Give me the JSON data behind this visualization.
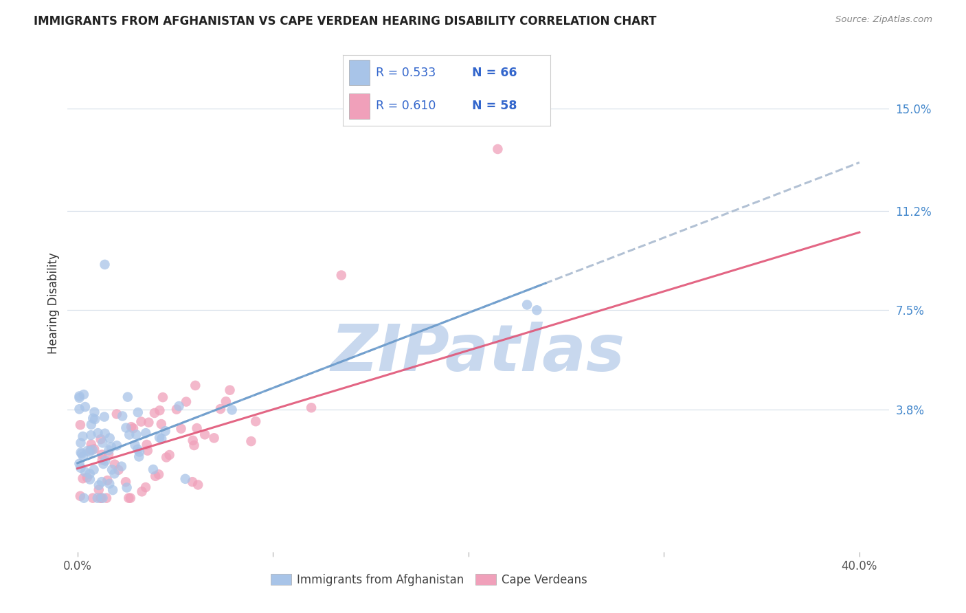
{
  "title": "IMMIGRANTS FROM AFGHANISTAN VS CAPE VERDEAN HEARING DISABILITY CORRELATION CHART",
  "source": "Source: ZipAtlas.com",
  "ylabel": "Hearing Disability",
  "ytick_labels": [
    "15.0%",
    "11.2%",
    "7.5%",
    "3.8%"
  ],
  "ytick_values": [
    0.15,
    0.112,
    0.075,
    0.038
  ],
  "xlim": [
    0.0,
    0.4
  ],
  "ylim": [
    -0.015,
    0.17
  ],
  "legend1_r": "R = 0.533",
  "legend1_n": "N = 66",
  "legend2_r": "R = 0.610",
  "legend2_n": "N = 58",
  "color_blue": "#a8c4e8",
  "color_pink": "#f0a0ba",
  "color_blue_line": "#6699cc",
  "color_pink_line": "#e05577",
  "color_dashed_line": "#aabbd0",
  "watermark_text": "ZIPatlas",
  "watermark_color": "#c8d8ee",
  "background_color": "#ffffff",
  "grid_color": "#d8e0ea",
  "title_color": "#222222",
  "source_color": "#888888",
  "legend_text_color": "#3366cc",
  "blue_line_intercept": 0.018,
  "blue_line_slope": 0.28,
  "pink_line_intercept": 0.016,
  "pink_line_slope": 0.22
}
